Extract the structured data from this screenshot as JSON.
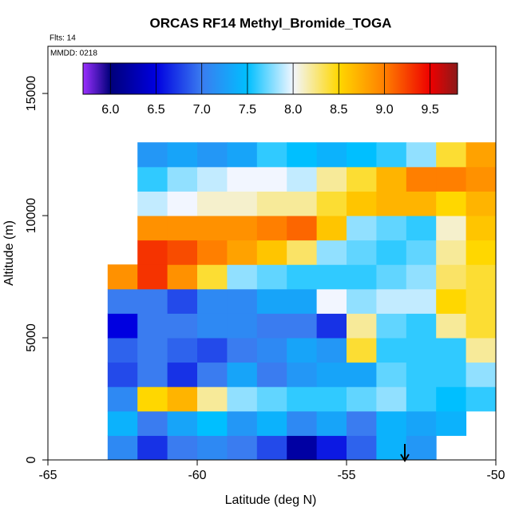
{
  "chart_data": {
    "type": "heatmap",
    "title": "ORCAS RF14 Methyl_Bromide_TOGA",
    "annotations": [
      "Flts: 14",
      "MMDD: 0218"
    ],
    "xlabel": "Latitude (deg N)",
    "ylabel": "Altitude (m)",
    "xlim": [
      -65,
      -50
    ],
    "xticks": [
      -65,
      -60,
      -55,
      -50
    ],
    "ylim": [
      0,
      16930
    ],
    "yticks": [
      0,
      5000,
      10000,
      15000
    ],
    "x_edges": [
      -63,
      -62,
      -61,
      -60,
      -59,
      -58,
      -57,
      -56,
      -55,
      -54,
      -53,
      -52,
      -51,
      -50
    ],
    "y_edges": [
      0,
      1000,
      2000,
      3000,
      4000,
      5000,
      6000,
      7000,
      8000,
      9000,
      10000,
      11000,
      12000,
      13000
    ],
    "z": [
      [
        7.1,
        6.7,
        7.0,
        7.1,
        7.0,
        6.8,
        6.2,
        6.6,
        6.9,
        7.4,
        7.2,
        null,
        null
      ],
      [
        7.4,
        7.0,
        7.3,
        7.5,
        7.2,
        7.4,
        7.1,
        7.3,
        7.0,
        7.4,
        7.3,
        7.4,
        null
      ],
      [
        7.1,
        8.5,
        8.7,
        8.2,
        7.8,
        7.7,
        7.6,
        7.6,
        7.7,
        7.8,
        7.6,
        7.5,
        7.6
      ],
      [
        6.8,
        7.0,
        6.7,
        7.0,
        7.3,
        7.0,
        7.2,
        7.3,
        7.3,
        7.7,
        7.6,
        7.6,
        7.8
      ],
      [
        6.9,
        7.0,
        6.9,
        6.8,
        7.0,
        7.1,
        7.3,
        7.2,
        8.4,
        7.6,
        7.6,
        7.6,
        8.2
      ],
      [
        6.5,
        7.0,
        7.0,
        7.1,
        7.1,
        7.0,
        7.0,
        6.7,
        8.2,
        7.7,
        7.6,
        8.2,
        8.4
      ],
      [
        7.0,
        7.0,
        6.8,
        7.1,
        7.1,
        7.3,
        7.3,
        8.0,
        7.8,
        7.9,
        7.9,
        8.5,
        8.4
      ],
      [
        8.9,
        9.3,
        8.9,
        8.4,
        7.8,
        7.7,
        7.6,
        7.6,
        7.6,
        7.7,
        7.8,
        8.3,
        8.4
      ],
      [
        null,
        9.3,
        9.2,
        9.0,
        8.8,
        8.6,
        8.3,
        7.8,
        7.7,
        7.6,
        7.7,
        8.2,
        8.5
      ],
      [
        null,
        8.9,
        8.9,
        8.9,
        8.9,
        9.0,
        9.1,
        8.6,
        7.8,
        7.7,
        7.6,
        8.1,
        8.6
      ],
      [
        null,
        7.9,
        8.0,
        8.1,
        8.1,
        8.2,
        8.2,
        8.4,
        8.6,
        8.7,
        8.7,
        8.5,
        8.7
      ],
      [
        null,
        7.6,
        7.8,
        7.9,
        8.0,
        8.0,
        7.9,
        8.2,
        8.4,
        8.7,
        9.0,
        9.0,
        8.9
      ],
      [
        null,
        7.2,
        7.3,
        7.2,
        7.3,
        7.6,
        7.5,
        7.4,
        7.5,
        7.6,
        7.8,
        8.4,
        8.8
      ]
    ],
    "zlim": [
      5.7,
      9.8
    ],
    "zticks": [
      {
        "value": 6,
        "label": "6.0"
      },
      {
        "value": 6.5,
        "label": "6.5"
      },
      {
        "value": 7,
        "label": "7.0"
      },
      {
        "value": 7.5,
        "label": "7.5"
      },
      {
        "value": 8,
        "label": "8.0"
      },
      {
        "value": 8.5,
        "label": "8.5"
      },
      {
        "value": 9,
        "label": "9.0"
      },
      {
        "value": 9.5,
        "label": "9.5"
      }
    ],
    "color_stops": [
      5.7,
      6.0,
      6.5,
      7.0,
      7.5,
      8.0,
      8.5,
      9.0,
      9.5,
      9.8
    ],
    "colors": [
      "#9b30ff",
      "#00007a",
      "#0000e0",
      "#3a7cf0",
      "#00bfff",
      "#f2f6ff",
      "#ffd700",
      "#ff7f00",
      "#ee0000",
      "#8b1a1a"
    ]
  }
}
